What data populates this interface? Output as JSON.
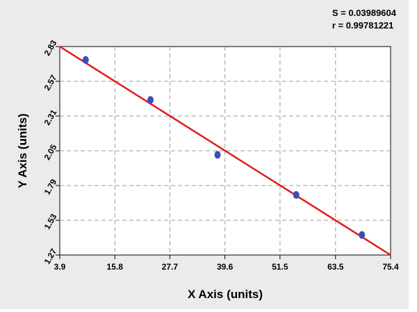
{
  "stats": {
    "s_text": "S = 0.03989604",
    "r_text": "r = 0.99781221"
  },
  "chart_data": {
    "type": "scatter",
    "title": "",
    "xlabel": "X Axis (units)",
    "ylabel": "Y Axis (units)",
    "xlim": [
      3.9,
      75.4
    ],
    "ylim": [
      1.27,
      2.83
    ],
    "x_ticks": [
      3.9,
      15.8,
      27.7,
      39.6,
      51.5,
      63.5,
      75.4
    ],
    "x_tick_labels": [
      "3.9",
      "15.8",
      "27.7",
      "39.6",
      "51.5",
      "63.5",
      "75.4"
    ],
    "y_ticks": [
      1.27,
      1.53,
      1.79,
      2.05,
      2.31,
      2.57,
      2.83
    ],
    "y_tick_labels": [
      "1.27",
      "1.53",
      "1.79",
      "2.05",
      "2.31",
      "2.57",
      "2.83"
    ],
    "grid": true,
    "series": [
      {
        "type": "scatter",
        "color": "#3a4fb0",
        "points": [
          [
            9.5,
            2.73
          ],
          [
            23.5,
            2.43
          ],
          [
            38.0,
            2.02
          ],
          [
            55.0,
            1.72
          ],
          [
            69.2,
            1.42
          ]
        ]
      },
      {
        "type": "line",
        "color": "#e21b1b",
        "points": [
          [
            3.9,
            2.83
          ],
          [
            75.4,
            1.27
          ]
        ]
      }
    ]
  }
}
